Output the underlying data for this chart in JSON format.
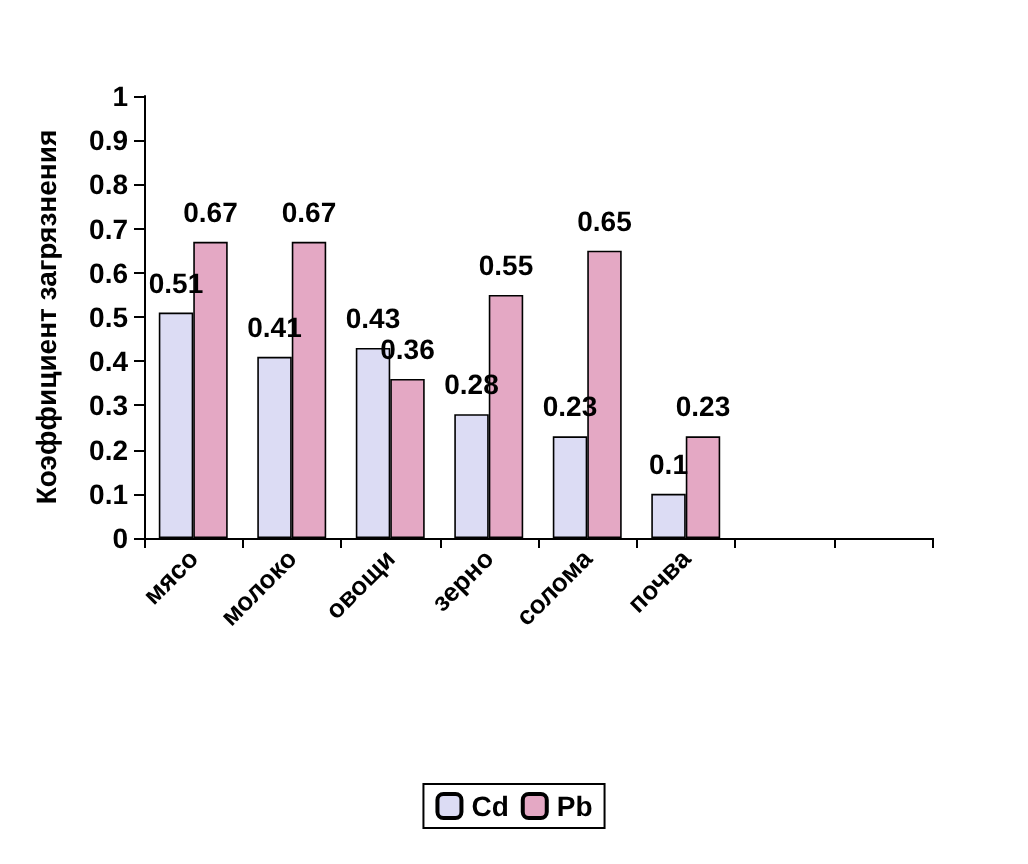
{
  "chart_data": {
    "type": "bar",
    "ylabel": "Коэффициент загрязнения",
    "categories": [
      "мясо",
      "молоко",
      "овощи",
      "зерно",
      "солома",
      "почва",
      null,
      null
    ],
    "series": [
      {
        "name": "Cd",
        "color": "#dcdcf4",
        "values": [
          0.51,
          0.41,
          0.43,
          0.28,
          0.23,
          0.1,
          null,
          null
        ]
      },
      {
        "name": "Pb",
        "color": "#e4a8c4",
        "values": [
          0.67,
          0.67,
          0.36,
          0.55,
          0.65,
          0.23,
          null,
          null
        ]
      }
    ],
    "ylim": [
      0,
      1
    ],
    "yticks": [
      0,
      0.1,
      0.2,
      0.3,
      0.4,
      0.5,
      0.6,
      0.7,
      0.8,
      0.9,
      1
    ],
    "data_labels": true,
    "legend": "bottom",
    "grid": false
  }
}
